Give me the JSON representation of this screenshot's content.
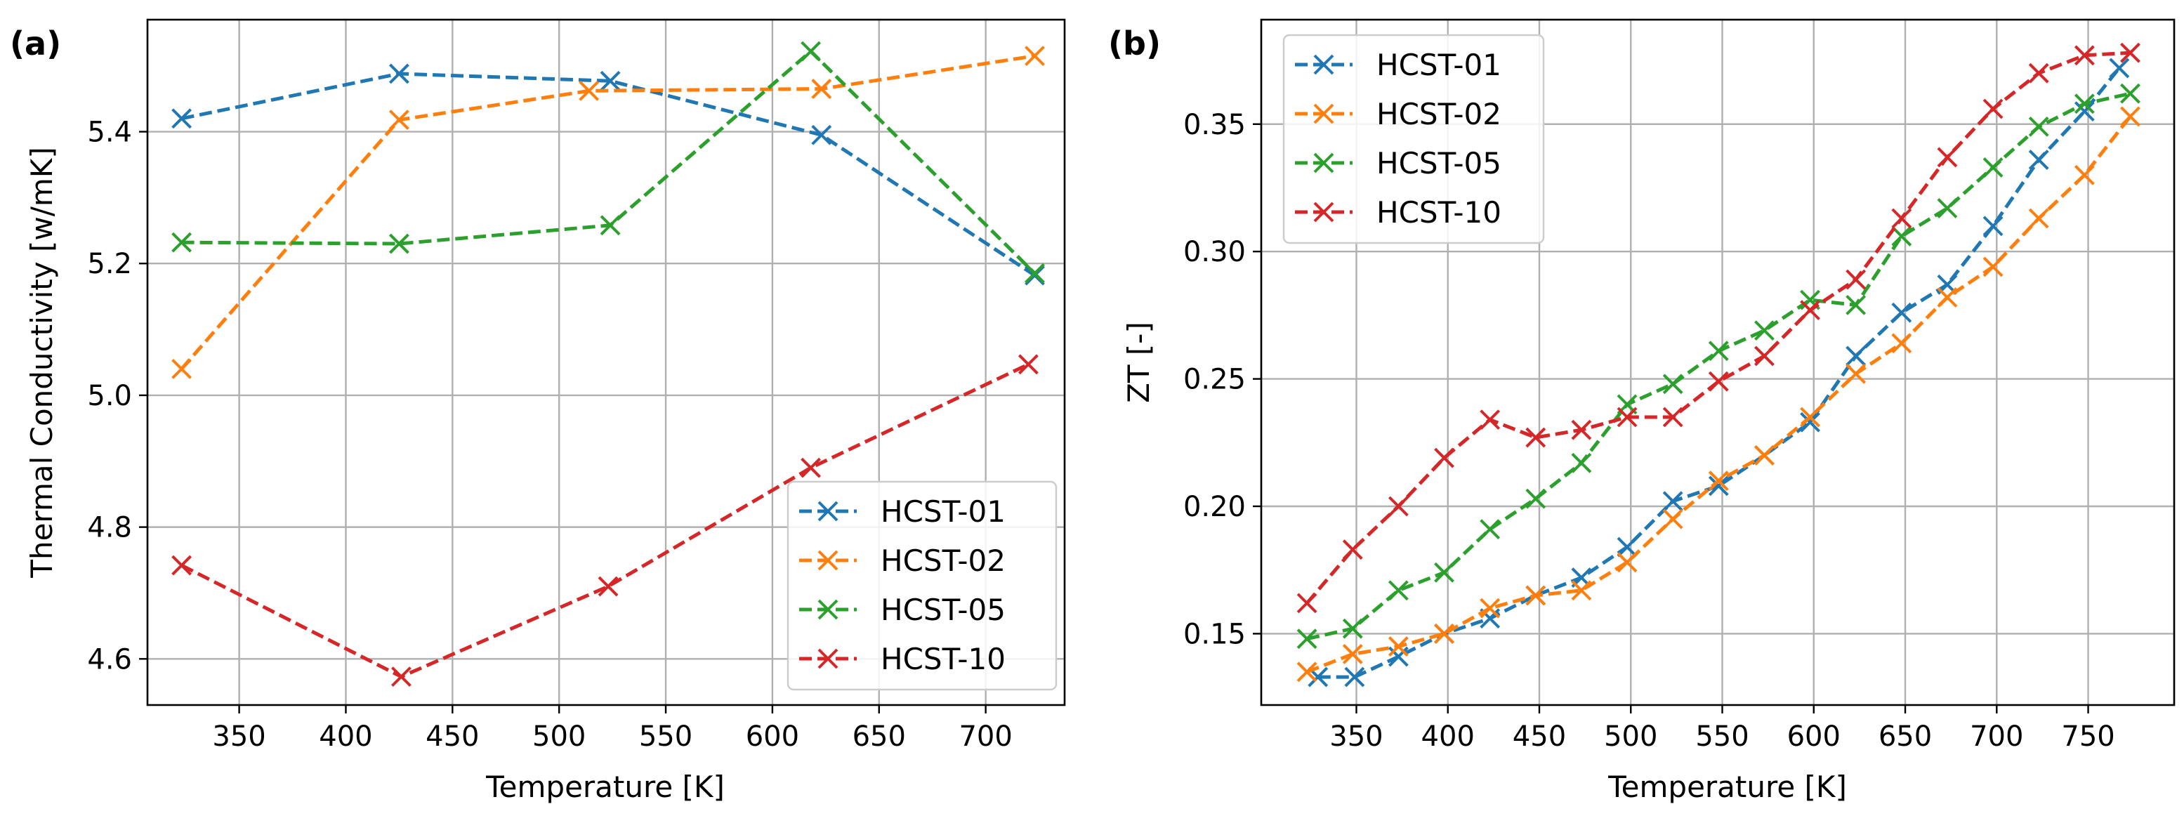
{
  "chart_data": [
    {
      "panel_label": "(a)",
      "type": "line",
      "xlabel": "Temperature [K]",
      "ylabel": "Thermal Conductivity [w/mK]",
      "xlim": [
        307,
        737
      ],
      "ylim": [
        4.53,
        5.57
      ],
      "xticks": [
        350,
        400,
        450,
        500,
        550,
        600,
        650,
        700
      ],
      "yticks": [
        4.6,
        4.8,
        5.0,
        5.2,
        5.4
      ],
      "ytick_labels": [
        "4.6",
        "4.8",
        "5.0",
        "5.2",
        "5.4"
      ],
      "grid": true,
      "legend_position": "lower-right",
      "series": [
        {
          "name": "HCST-01",
          "color": "#1f77b4",
          "x": [
            323,
            425,
            524,
            623,
            723
          ],
          "y": [
            5.42,
            5.488,
            5.477,
            5.395,
            5.182
          ]
        },
        {
          "name": "HCST-02",
          "color": "#ff7f0e",
          "x": [
            323,
            425,
            514,
            623,
            723
          ],
          "y": [
            5.04,
            5.418,
            5.462,
            5.465,
            5.515
          ]
        },
        {
          "name": "HCST-05",
          "color": "#2ca02c",
          "x": [
            323,
            425,
            524,
            618,
            723
          ],
          "y": [
            5.232,
            5.23,
            5.258,
            5.522,
            5.185
          ]
        },
        {
          "name": "HCST-10",
          "color": "#d62728",
          "x": [
            323,
            426,
            523,
            618,
            720
          ],
          "y": [
            4.742,
            4.573,
            4.71,
            4.89,
            5.047
          ]
        }
      ]
    },
    {
      "panel_label": "(b)",
      "type": "line",
      "xlabel": "Temperature [K]",
      "ylabel": "ZT [-]",
      "xlim": [
        298,
        797
      ],
      "ylim": [
        0.122,
        0.391
      ],
      "xticks": [
        350,
        400,
        450,
        500,
        550,
        600,
        650,
        700,
        750
      ],
      "yticks": [
        0.15,
        0.2,
        0.25,
        0.3,
        0.35
      ],
      "ytick_labels": [
        "0.15",
        "0.20",
        "0.25",
        "0.30",
        "0.35"
      ],
      "grid": true,
      "legend_position": "upper-left",
      "series": [
        {
          "name": "HCST-01",
          "color": "#1f77b4",
          "x": [
            329,
            349,
            373,
            398,
            423,
            448,
            473,
            498,
            523,
            548,
            573,
            598,
            623,
            648,
            673,
            698,
            723,
            748,
            767
          ],
          "y": [
            0.133,
            0.133,
            0.141,
            0.15,
            0.156,
            0.165,
            0.172,
            0.184,
            0.202,
            0.208,
            0.22,
            0.233,
            0.259,
            0.276,
            0.287,
            0.31,
            0.336,
            0.355,
            0.372
          ]
        },
        {
          "name": "HCST-02",
          "color": "#ff7f0e",
          "x": [
            323,
            348,
            373,
            398,
            423,
            448,
            473,
            498,
            523,
            548,
            573,
            598,
            623,
            648,
            673,
            698,
            723,
            748,
            773
          ],
          "y": [
            0.135,
            0.142,
            0.145,
            0.15,
            0.16,
            0.165,
            0.167,
            0.178,
            0.195,
            0.21,
            0.22,
            0.235,
            0.252,
            0.264,
            0.282,
            0.294,
            0.313,
            0.33,
            0.353
          ]
        },
        {
          "name": "HCST-05",
          "color": "#2ca02c",
          "x": [
            323,
            348,
            373,
            398,
            423,
            448,
            473,
            498,
            523,
            548,
            573,
            598,
            623,
            648,
            673,
            698,
            723,
            748,
            773
          ],
          "y": [
            0.148,
            0.152,
            0.167,
            0.174,
            0.191,
            0.203,
            0.217,
            0.24,
            0.248,
            0.261,
            0.269,
            0.281,
            0.279,
            0.306,
            0.317,
            0.333,
            0.349,
            0.358,
            0.362
          ]
        },
        {
          "name": "HCST-10",
          "color": "#d62728",
          "x": [
            323,
            348,
            373,
            398,
            423,
            448,
            473,
            498,
            523,
            548,
            573,
            598,
            623,
            648,
            673,
            698,
            723,
            748,
            773
          ],
          "y": [
            0.162,
            0.183,
            0.2,
            0.219,
            0.234,
            0.227,
            0.23,
            0.235,
            0.235,
            0.249,
            0.259,
            0.277,
            0.289,
            0.313,
            0.337,
            0.356,
            0.37,
            0.377,
            0.378
          ]
        }
      ]
    }
  ]
}
